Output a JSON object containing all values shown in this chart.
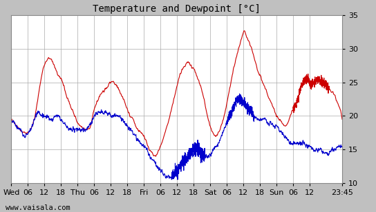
{
  "title": "Temperature and Dewpoint [°C]",
  "ylim": [
    10,
    35
  ],
  "yticks": [
    10,
    15,
    20,
    25,
    30,
    35
  ],
  "temp_color": "#cc0000",
  "dew_color": "#0000cc",
  "line_width": 0.8,
  "bg_color": "#ffffff",
  "outer_bg": "#c0c0c0",
  "watermark": "www.vaisala.com",
  "title_fontsize": 10,
  "tick_fontsize": 8,
  "watermark_fontsize": 7.5,
  "xtick_labels": [
    "Wed",
    "06",
    "12",
    "18",
    "Thu",
    "06",
    "12",
    "18",
    "Fri",
    "06",
    "12",
    "18",
    "Sat",
    "06",
    "12",
    "18",
    "Sun",
    "06",
    "12",
    "23:45"
  ],
  "xtick_positions": [
    0,
    6,
    12,
    18,
    24,
    30,
    36,
    42,
    48,
    54,
    60,
    66,
    72,
    78,
    84,
    90,
    96,
    102,
    108,
    119.75
  ],
  "temp_pts": [
    [
      0,
      19.5
    ],
    [
      1,
      19
    ],
    [
      3,
      18
    ],
    [
      5,
      17.5
    ],
    [
      7,
      18
    ],
    [
      9,
      21
    ],
    [
      11,
      26
    ],
    [
      12.5,
      28
    ],
    [
      14,
      28.5
    ],
    [
      15,
      28
    ],
    [
      17,
      26
    ],
    [
      18,
      25.5
    ],
    [
      20,
      23
    ],
    [
      22,
      21
    ],
    [
      23,
      20
    ],
    [
      24,
      19
    ],
    [
      25,
      18.5
    ],
    [
      27,
      18
    ],
    [
      29,
      19
    ],
    [
      30,
      21
    ],
    [
      31,
      22
    ],
    [
      32,
      23
    ],
    [
      33,
      23.5
    ],
    [
      35,
      24.5
    ],
    [
      36,
      25
    ],
    [
      37,
      25
    ],
    [
      38,
      24.5
    ],
    [
      40,
      23
    ],
    [
      42,
      21
    ],
    [
      43,
      20
    ],
    [
      44,
      19.5
    ],
    [
      45,
      18.5
    ],
    [
      47,
      17.5
    ],
    [
      48,
      17
    ],
    [
      49,
      16
    ],
    [
      50,
      15
    ],
    [
      51,
      14.5
    ],
    [
      52,
      14
    ],
    [
      53,
      14.5
    ],
    [
      54,
      15.5
    ],
    [
      56,
      18
    ],
    [
      58,
      21
    ],
    [
      60,
      24.5
    ],
    [
      62,
      27
    ],
    [
      63,
      27.5
    ],
    [
      64,
      28
    ],
    [
      65,
      27.5
    ],
    [
      66,
      27
    ],
    [
      68,
      25
    ],
    [
      70,
      22
    ],
    [
      71,
      20
    ],
    [
      72,
      18.5
    ],
    [
      73,
      17.5
    ],
    [
      74,
      17
    ],
    [
      75,
      17.5
    ],
    [
      77,
      20
    ],
    [
      79,
      24
    ],
    [
      81,
      28
    ],
    [
      83,
      31
    ],
    [
      84.5,
      32.5
    ],
    [
      85,
      32
    ],
    [
      86,
      31
    ],
    [
      87,
      30
    ],
    [
      89,
      27
    ],
    [
      90,
      26
    ],
    [
      91,
      25
    ],
    [
      92,
      24
    ],
    [
      93,
      23
    ],
    [
      94,
      22
    ],
    [
      95,
      21
    ],
    [
      96,
      20
    ],
    [
      97,
      19.5
    ],
    [
      98,
      19
    ],
    [
      99,
      18.5
    ],
    [
      100,
      19
    ],
    [
      101,
      20
    ],
    [
      102,
      21
    ],
    [
      104,
      23
    ],
    [
      105,
      24.5
    ],
    [
      106,
      25
    ],
    [
      107,
      25.5
    ],
    [
      108,
      25
    ],
    [
      110,
      25
    ],
    [
      111,
      25.5
    ],
    [
      112,
      25
    ],
    [
      113,
      25
    ],
    [
      114,
      24.5
    ],
    [
      115,
      24
    ],
    [
      116,
      23.5
    ],
    [
      117,
      23
    ],
    [
      118,
      22
    ],
    [
      119,
      21
    ],
    [
      119.75,
      19.5
    ]
  ],
  "dew_pts": [
    [
      0,
      19.5
    ],
    [
      1,
      19
    ],
    [
      2,
      18.5
    ],
    [
      3,
      18
    ],
    [
      4,
      17.5
    ],
    [
      5,
      17
    ],
    [
      6,
      17.5
    ],
    [
      7,
      18
    ],
    [
      8,
      19
    ],
    [
      9,
      20
    ],
    [
      10,
      20.5
    ],
    [
      11,
      20
    ],
    [
      12,
      20
    ],
    [
      13,
      20
    ],
    [
      14,
      19.5
    ],
    [
      15,
      19.5
    ],
    [
      16,
      20
    ],
    [
      17,
      20
    ],
    [
      18,
      19.5
    ],
    [
      19,
      19
    ],
    [
      20,
      18.5
    ],
    [
      21,
      18
    ],
    [
      22,
      18
    ],
    [
      23,
      18
    ],
    [
      24,
      18
    ],
    [
      25,
      18
    ],
    [
      26,
      18
    ],
    [
      27,
      18
    ],
    [
      28,
      18.5
    ],
    [
      29,
      19
    ],
    [
      30,
      20
    ],
    [
      31,
      20.5
    ],
    [
      32,
      20.5
    ],
    [
      33,
      20.5
    ],
    [
      34,
      20.5
    ],
    [
      35,
      20.5
    ],
    [
      36,
      20
    ],
    [
      37,
      20
    ],
    [
      38,
      20
    ],
    [
      39,
      20
    ],
    [
      40,
      19.5
    ],
    [
      41,
      19
    ],
    [
      42,
      18.5
    ],
    [
      43,
      18
    ],
    [
      44,
      17.5
    ],
    [
      45,
      17
    ],
    [
      46,
      16.5
    ],
    [
      47,
      16
    ],
    [
      48,
      15.5
    ],
    [
      49,
      15
    ],
    [
      50,
      14
    ],
    [
      51,
      13.5
    ],
    [
      52,
      13
    ],
    [
      53,
      12.5
    ],
    [
      54,
      12
    ],
    [
      55,
      11.5
    ],
    [
      56,
      11
    ],
    [
      57,
      11
    ],
    [
      58,
      11
    ],
    [
      59,
      11.5
    ],
    [
      60,
      12
    ],
    [
      61,
      12.5
    ],
    [
      62,
      13
    ],
    [
      63,
      13.5
    ],
    [
      64,
      14
    ],
    [
      65,
      14.5
    ],
    [
      66,
      15
    ],
    [
      67,
      15
    ],
    [
      68,
      15
    ],
    [
      69,
      14.5
    ],
    [
      70,
      14
    ],
    [
      71,
      14
    ],
    [
      72,
      14
    ],
    [
      73,
      15
    ],
    [
      74,
      15.5
    ],
    [
      75,
      16
    ],
    [
      76,
      17
    ],
    [
      77,
      18
    ],
    [
      78,
      19
    ],
    [
      79,
      20
    ],
    [
      80,
      21
    ],
    [
      81,
      22
    ],
    [
      82,
      22.5
    ],
    [
      83,
      22.5
    ],
    [
      84,
      22
    ],
    [
      85,
      21.5
    ],
    [
      86,
      21
    ],
    [
      87,
      20.5
    ],
    [
      88,
      20
    ],
    [
      89,
      19.5
    ],
    [
      90,
      19.5
    ],
    [
      91,
      19.5
    ],
    [
      92,
      19.5
    ],
    [
      93,
      19
    ],
    [
      94,
      19
    ],
    [
      95,
      18.5
    ],
    [
      96,
      18.5
    ],
    [
      97,
      18
    ],
    [
      98,
      17.5
    ],
    [
      99,
      17
    ],
    [
      100,
      16.5
    ],
    [
      101,
      16
    ],
    [
      102,
      16
    ],
    [
      103,
      16
    ],
    [
      104,
      16
    ],
    [
      105,
      16
    ],
    [
      106,
      16
    ],
    [
      107,
      15.5
    ],
    [
      108,
      15.5
    ],
    [
      109,
      15
    ],
    [
      110,
      15
    ],
    [
      111,
      15
    ],
    [
      112,
      15
    ],
    [
      113,
      14.5
    ],
    [
      114,
      14.5
    ],
    [
      115,
      14.5
    ],
    [
      116,
      15
    ],
    [
      117,
      15
    ],
    [
      118,
      15.5
    ],
    [
      119,
      15.5
    ],
    [
      119.75,
      15.5
    ]
  ]
}
